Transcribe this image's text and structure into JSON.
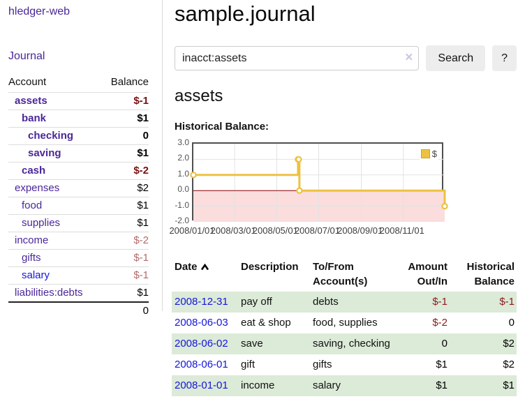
{
  "colors": {
    "purple": "#4a2799",
    "blue": "#1515dd",
    "neg_dark": "#7a1010",
    "neg_light": "#b36a6a",
    "neg_register": "#8b1a1a",
    "row_green": "#dcead8",
    "series_gold": "#edc240",
    "chart_negative_region": "#fbdddd",
    "zero_line": "#8b0000",
    "gridline": "#e2e2e2"
  },
  "app": {
    "brand": "hledger-web"
  },
  "sidebar": {
    "nav": {
      "journal_label": "Journal"
    },
    "accounts_table": {
      "headers": {
        "account": "Account",
        "balance": "Balance"
      },
      "rows": [
        {
          "name": "assets",
          "balance": "$-1",
          "depth": 1,
          "bold": true,
          "balance_style": "neg-bold",
          "link": "purple"
        },
        {
          "name": "bank",
          "balance": "$1",
          "depth": 2,
          "bold": true,
          "balance_style": "plain",
          "link": "purple"
        },
        {
          "name": "checking",
          "balance": "0",
          "depth": 3,
          "bold": true,
          "balance_style": "plain",
          "link": "purple"
        },
        {
          "name": "saving",
          "balance": "$1",
          "depth": 3,
          "bold": true,
          "balance_style": "plain",
          "link": "purple"
        },
        {
          "name": "cash",
          "balance": "$-2",
          "depth": 2,
          "bold": true,
          "balance_style": "neg-bold",
          "link": "purple"
        },
        {
          "name": "expenses",
          "balance": "$2",
          "depth": 1,
          "bold": false,
          "balance_style": "plain",
          "link": "purple"
        },
        {
          "name": "food",
          "balance": "$1",
          "depth": 2,
          "bold": false,
          "balance_style": "plain",
          "link": "purple"
        },
        {
          "name": "supplies",
          "balance": "$1",
          "depth": 2,
          "bold": false,
          "balance_style": "plain",
          "link": "purple"
        },
        {
          "name": "income",
          "balance": "$-2",
          "depth": 1,
          "bold": false,
          "balance_style": "neg-light",
          "link": "purple"
        },
        {
          "name": "gifts",
          "balance": "$-1",
          "depth": 2,
          "bold": false,
          "balance_style": "neg-light",
          "link": "purple"
        },
        {
          "name": "salary",
          "balance": "$-1",
          "depth": 2,
          "bold": false,
          "balance_style": "neg-light",
          "link": "blue"
        },
        {
          "name": "liabilities:debts",
          "balance": "$1",
          "depth": 1,
          "bold": false,
          "balance_style": "plain",
          "link": "purple"
        }
      ],
      "total": "0"
    }
  },
  "header": {
    "title": "sample.journal"
  },
  "search": {
    "query": "inacct:assets",
    "clear_icon": "×",
    "search_label": "Search",
    "help_label": "?"
  },
  "account_page": {
    "heading": "assets",
    "chart_label": "Historical Balance:"
  },
  "chart_data": {
    "type": "line",
    "title": "Historical Balance",
    "step": true,
    "legend": {
      "label": "$",
      "position": "top-right"
    },
    "ylim": [
      -2,
      3
    ],
    "y_ticks": [
      3.0,
      2.0,
      1.0,
      0.0,
      -1.0,
      -2.0
    ],
    "x_range_days": 365,
    "x_ticks": [
      {
        "label": "2008/01/01",
        "day": 0
      },
      {
        "label": "2008/03/01",
        "day": 60
      },
      {
        "label": "2008/05/01",
        "day": 121
      },
      {
        "label": "2008/07/01",
        "day": 182
      },
      {
        "label": "2008/09/01",
        "day": 244
      },
      {
        "label": "2008/11/01",
        "day": 305
      }
    ],
    "series": [
      {
        "name": "$",
        "points": [
          {
            "date": "2008-01-01",
            "day": 0,
            "value": 1
          },
          {
            "date": "2008-06-01",
            "day": 152,
            "value": 2
          },
          {
            "date": "2008-06-02",
            "day": 153,
            "value": 2
          },
          {
            "date": "2008-06-03",
            "day": 154,
            "value": 0
          },
          {
            "date": "2008-12-31",
            "day": 365,
            "value": -1
          }
        ]
      }
    ],
    "negative_region_shaded": true,
    "grid": true
  },
  "register": {
    "headers": {
      "date": "Date",
      "sort_direction": "asc",
      "description": "Description",
      "accounts": "To/From Account(s)",
      "amount": "Amount Out/In",
      "balance": "Historical Balance"
    },
    "rows": [
      {
        "date": "2008-12-31",
        "description": "pay off",
        "accounts": "debts",
        "amount": "$-1",
        "amount_negative": true,
        "balance": "$-1",
        "balance_negative": true
      },
      {
        "date": "2008-06-03",
        "description": "eat & shop",
        "accounts": "food, supplies",
        "amount": "$-2",
        "amount_negative": true,
        "balance": "0",
        "balance_negative": false
      },
      {
        "date": "2008-06-02",
        "description": "save",
        "accounts": "saving, checking",
        "amount": "0",
        "amount_negative": false,
        "balance": "$2",
        "balance_negative": false
      },
      {
        "date": "2008-06-01",
        "description": "gift",
        "accounts": "gifts",
        "amount": "$1",
        "amount_negative": false,
        "balance": "$2",
        "balance_negative": false
      },
      {
        "date": "2008-01-01",
        "description": "income",
        "accounts": "salary",
        "amount": "$1",
        "amount_negative": false,
        "balance": "$1",
        "balance_negative": false
      }
    ]
  }
}
